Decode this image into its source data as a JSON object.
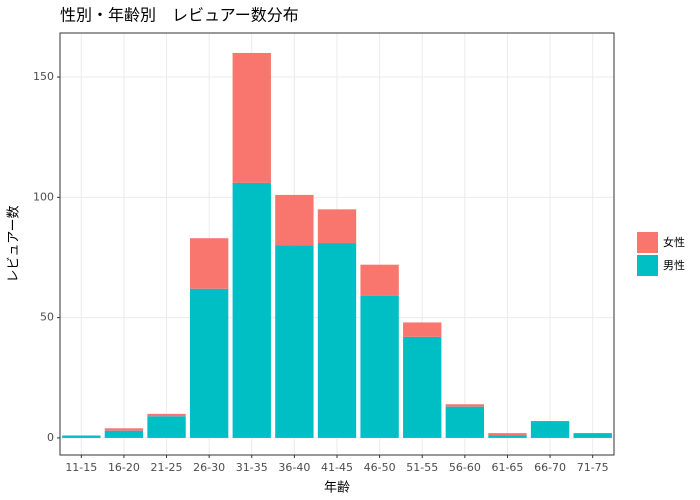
{
  "chart_data": {
    "type": "stacked_bar",
    "title": "性別・年齢別　レビュアー数分布",
    "x_label": "年齢",
    "y_label": "レビュアー数",
    "categories": [
      "11-15",
      "16-20",
      "21-25",
      "26-30",
      "31-35",
      "36-40",
      "41-45",
      "46-50",
      "51-55",
      "56-60",
      "61-65",
      "66-70",
      "71-75"
    ],
    "series": [
      {
        "name": "女性",
        "color": "#F8766D",
        "values": [
          0,
          1,
          1,
          21,
          54,
          21,
          14,
          13,
          6,
          1,
          1,
          0,
          0
        ]
      },
      {
        "name": "男性",
        "color": "#00BFC4",
        "values": [
          1,
          3,
          9,
          62,
          106,
          80,
          81,
          59,
          42,
          13,
          1,
          7,
          2
        ]
      }
    ],
    "ylim": [
      -7.1,
      168.3
    ],
    "yticks": [
      0,
      50,
      100,
      150
    ],
    "grid": true,
    "legend": "right"
  }
}
